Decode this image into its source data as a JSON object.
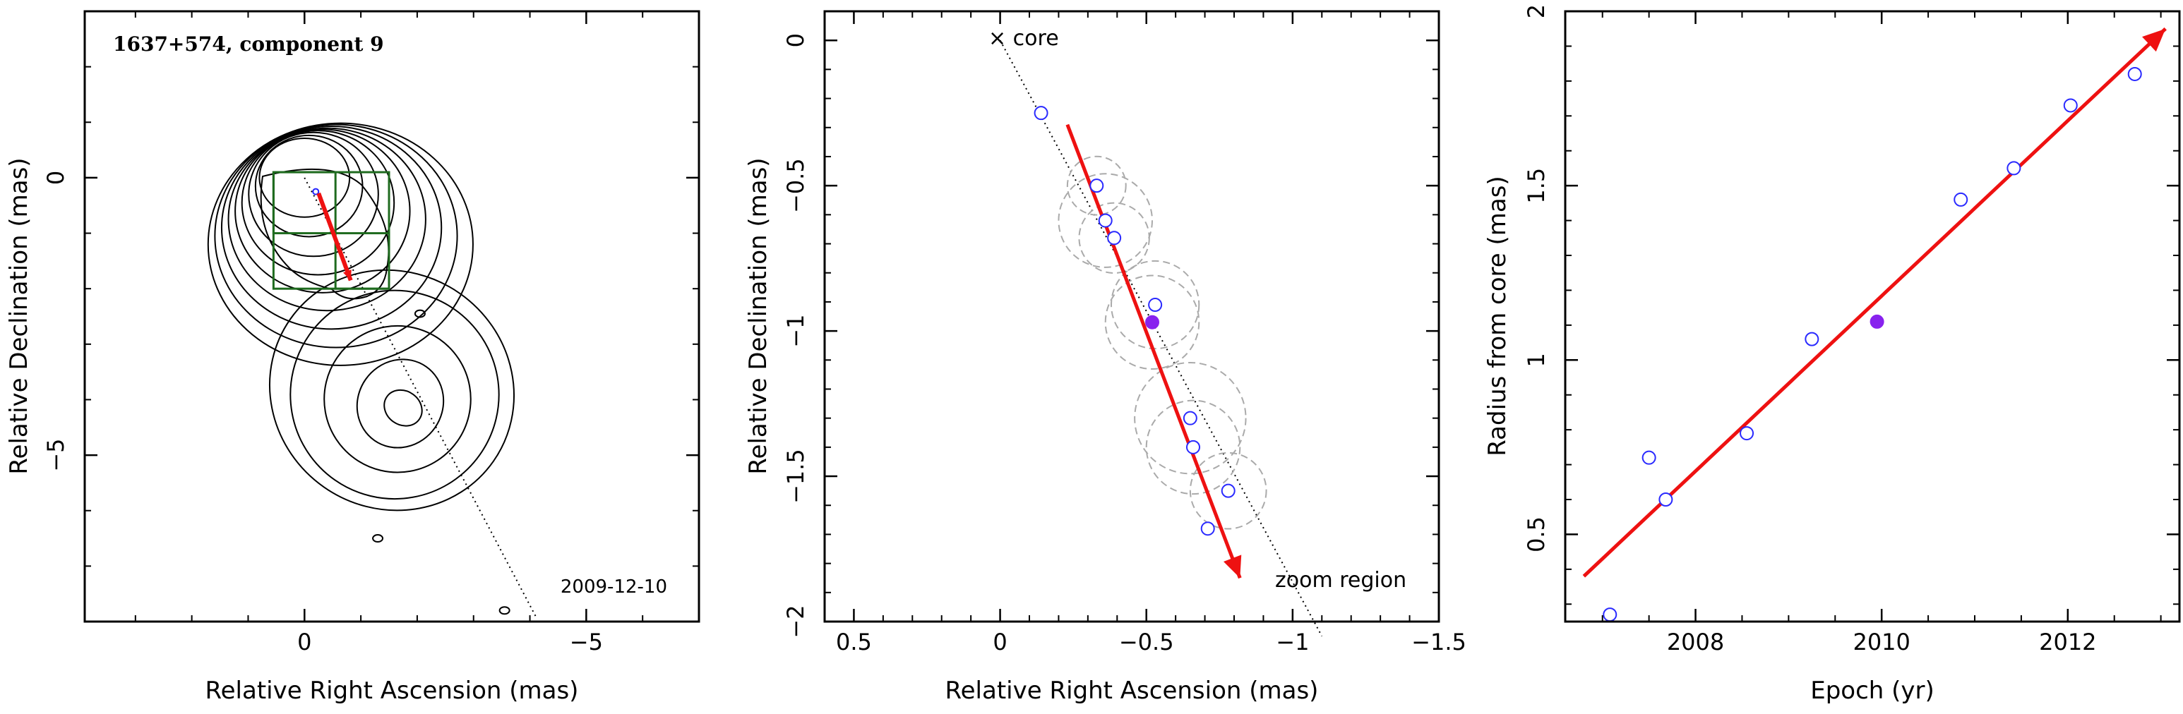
{
  "chart_data": [
    {
      "type": "contour",
      "annotation": "1637+574, component 9",
      "date_label": "2009-12-10",
      "xlabel": "Relative Right Ascension (mas)",
      "ylabel": "Relative Declination (mas)",
      "xlim": [
        3.9,
        -7.0
      ],
      "ylim": [
        -8.0,
        3.0
      ],
      "xticks": [
        0,
        -5
      ],
      "yticks": [
        0,
        -5
      ],
      "xtick_labels": [
        "0",
        "−5"
      ],
      "ytick_labels": [
        "0",
        "−5"
      ],
      "colors": {
        "contour": "#000000",
        "box": "#1f6b1f",
        "arrow": "#ee1111",
        "marker": "#2222ff"
      },
      "core_contours": [
        [
          0.8,
          0.7
        ],
        [
          0.95,
          0.9
        ],
        [
          1.15,
          1.1
        ],
        [
          1.35,
          1.28
        ],
        [
          1.55,
          1.45
        ],
        [
          1.75,
          1.62
        ],
        [
          1.95,
          1.8
        ],
        [
          2.15,
          1.98
        ],
        [
          2.35,
          2.15
        ]
      ],
      "knot_center": [
        -1.75,
        -4.15
      ],
      "knot_contours": [
        [
          0.35,
          0.3
        ],
        [
          0.75,
          0.8
        ],
        [
          1.3,
          1.3
        ],
        [
          1.85,
          1.85
        ],
        [
          2.2,
          2.1
        ]
      ],
      "jet_axis": {
        "from": [
          0,
          0
        ],
        "to": [
          -4.1,
          -7.9
        ]
      },
      "zoom_boxes": [
        {
          "x": [
            0.55,
            -1.5
          ],
          "y": [
            0.1,
            -2.0
          ]
        },
        {
          "x": [
            0.55,
            -0.55
          ],
          "y": [
            0.1,
            -1.0
          ]
        },
        {
          "x": [
            -0.55,
            -1.5
          ],
          "y": [
            -1.0,
            -2.0
          ]
        }
      ],
      "arrow": {
        "from": [
          -0.25,
          -0.28
        ],
        "to": [
          -0.82,
          -1.85
        ]
      }
    },
    {
      "type": "scatter",
      "xlabel": "Relative Right Ascension (mas)",
      "ylabel": "Relative Declination (mas)",
      "xlim": [
        0.6,
        -1.5
      ],
      "ylim": [
        -2.0,
        0.1
      ],
      "xticks": [
        0.5,
        0,
        -0.5,
        -1,
        -1.5
      ],
      "xtick_labels": [
        "0.5",
        "0",
        "−0.5",
        "−1",
        "−1.5"
      ],
      "yticks": [
        0,
        -0.5,
        -1,
        -1.5,
        -2
      ],
      "ytick_labels": [
        "0",
        "−0.5",
        "−1",
        "−1.5",
        "−2"
      ],
      "core_label": "× core",
      "region_label": "zoom region",
      "colors": {
        "open_marker": "#2a2aff",
        "filled_marker": "#8822ee",
        "arrow": "#ee1111",
        "circle": "#aaaaaa"
      },
      "points": [
        {
          "x": -0.14,
          "y": -0.25,
          "size": 0
        },
        {
          "x": -0.33,
          "y": -0.5,
          "size": 0.1
        },
        {
          "x": -0.36,
          "y": -0.62,
          "size": 0.16
        },
        {
          "x": -0.39,
          "y": -0.68,
          "size": 0.12
        },
        {
          "x": -0.53,
          "y": -0.91,
          "size": 0.15
        },
        {
          "x": -0.65,
          "y": -1.3,
          "size": 0.19
        },
        {
          "x": -0.66,
          "y": -1.4,
          "size": 0.16
        },
        {
          "x": -0.78,
          "y": -1.55,
          "size": 0.13
        },
        {
          "x": -0.71,
          "y": -1.68,
          "size": 0
        }
      ],
      "filled_point": {
        "x": -0.52,
        "y": -0.97,
        "size": 0.16
      },
      "jet_axis": {
        "from": [
          0,
          0
        ],
        "to": [
          -1.1,
          -2.05
        ]
      },
      "arrow": {
        "from": [
          -0.23,
          -0.29
        ],
        "to": [
          -0.82,
          -1.85
        ]
      }
    },
    {
      "type": "scatter",
      "xlabel": "Epoch (yr)",
      "ylabel": "Radius from core (mas)",
      "xlim": [
        2006.6,
        2013.2
      ],
      "ylim": [
        0.25,
        2.0
      ],
      "xticks": [
        2008,
        2010,
        2012
      ],
      "xtick_labels": [
        "2008",
        "2010",
        "2012"
      ],
      "yticks": [
        0.5,
        1,
        1.5,
        2
      ],
      "ytick_labels": [
        "0.5",
        "1",
        "1.5",
        "2"
      ],
      "colors": {
        "open_marker": "#2a2aff",
        "filled_marker": "#8822ee",
        "fit": "#ee1111"
      },
      "x": [
        2007.08,
        2007.5,
        2007.68,
        2008.55,
        2009.25,
        2010.85,
        2011.42,
        2012.03,
        2012.72
      ],
      "y": [
        0.27,
        0.72,
        0.6,
        0.79,
        1.06,
        1.46,
        1.55,
        1.73,
        1.82
      ],
      "filled_point": {
        "x": 2009.95,
        "y": 1.11
      },
      "fit_line": {
        "from": [
          2006.8,
          0.38
        ],
        "to": [
          2013.05,
          1.95
        ]
      }
    }
  ]
}
